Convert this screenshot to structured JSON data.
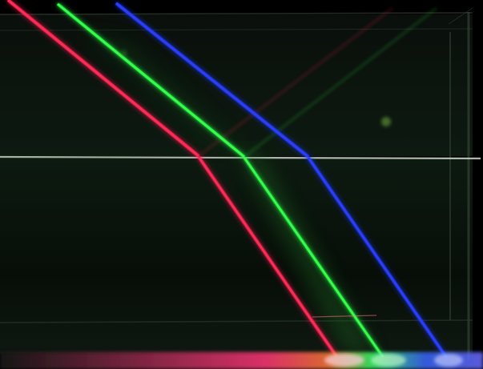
{
  "scene": {
    "subject": "laser-refraction-photo",
    "beams": [
      {
        "name": "red-beam",
        "color": "#ff2a55"
      },
      {
        "name": "green-beam",
        "color": "#33ff4a"
      },
      {
        "name": "blue-beam",
        "color": "#2a3dff"
      }
    ],
    "colors": {
      "background": "#000000",
      "water": "#0b1a0d",
      "glass": "#5a6b58",
      "surface_line": "#c7d0c2"
    }
  }
}
